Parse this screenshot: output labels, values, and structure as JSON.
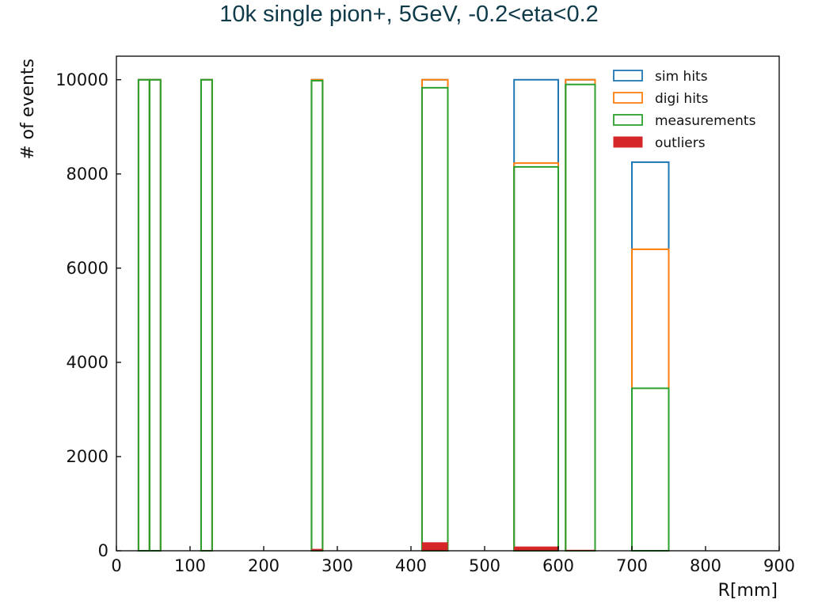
{
  "slide": {
    "title": "10k single pion+, 5GeV, -0.2<eta<0.2"
  },
  "colors": {
    "sim_hits": "#1f77b4",
    "digi_hits": "#ff7f0e",
    "measurements": "#2ca02c",
    "outliers": "#d62728"
  },
  "chart_data": {
    "type": "bar",
    "title": "",
    "xlabel": "R[mm]",
    "ylabel": "# of events",
    "xlim": [
      0,
      900
    ],
    "ylim": [
      0,
      10500
    ],
    "xticks": [
      0,
      100,
      200,
      300,
      400,
      500,
      600,
      700,
      800,
      900
    ],
    "yticks": [
      0,
      2000,
      4000,
      6000,
      8000,
      10000
    ],
    "grid": false,
    "legend_position": "top-right",
    "bins": [
      [
        30,
        45
      ],
      [
        45,
        60
      ],
      [
        115,
        130
      ],
      [
        265,
        280
      ],
      [
        415,
        450
      ],
      [
        540,
        600
      ],
      [
        610,
        650
      ],
      [
        700,
        750
      ]
    ],
    "series": [
      {
        "name": "sim hits",
        "style": "step",
        "color": "#1f77b4",
        "values": [
          10000,
          10000,
          10000,
          10000,
          10000,
          10000,
          10000,
          8250
        ]
      },
      {
        "name": "digi hits",
        "style": "step",
        "color": "#ff7f0e",
        "values": [
          10000,
          10000,
          10000,
          10000,
          10000,
          8230,
          10000,
          6400
        ]
      },
      {
        "name": "measurements",
        "style": "step",
        "color": "#2ca02c",
        "values": [
          10000,
          10000,
          10000,
          9980,
          9830,
          8150,
          9900,
          3450
        ]
      },
      {
        "name": "outliers",
        "style": "filled",
        "color": "#d62728",
        "values": [
          0,
          0,
          10,
          40,
          180,
          90,
          20,
          0
        ]
      }
    ]
  }
}
